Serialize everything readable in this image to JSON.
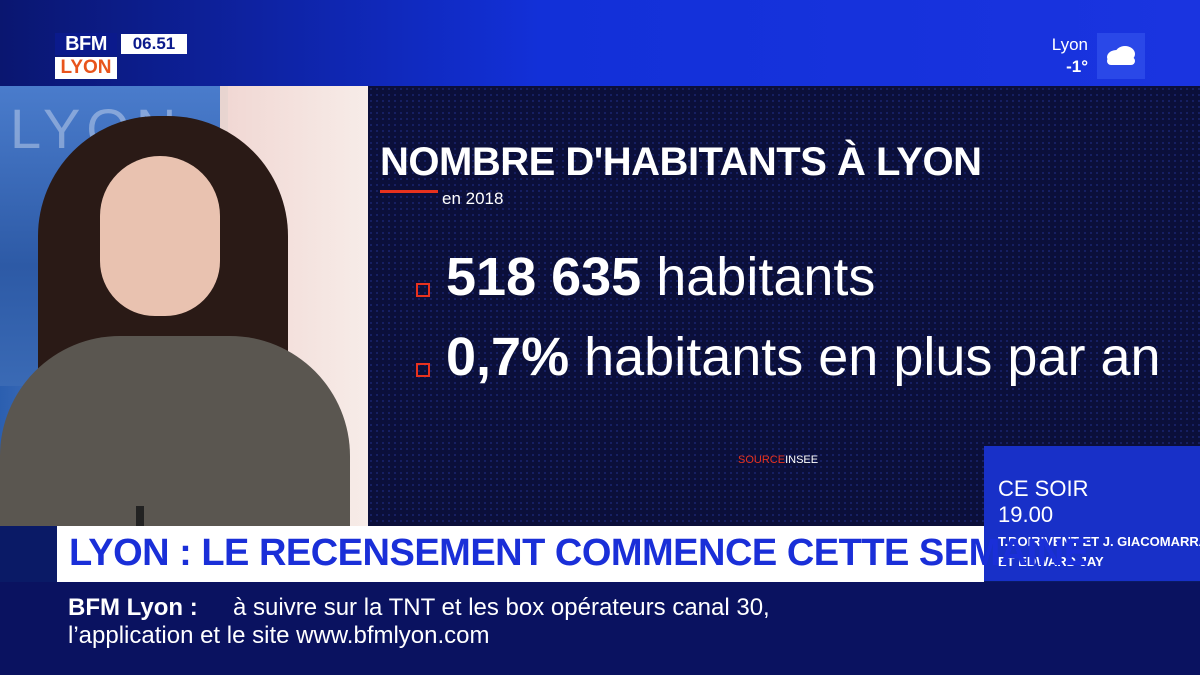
{
  "brand": {
    "bfm": "BFM",
    "city": "LYON"
  },
  "clock": "06.51",
  "weather": {
    "city": "Lyon",
    "temp": "-1°",
    "icon": "cloud-icon"
  },
  "studio": {
    "screen_text": "LYON"
  },
  "infographic": {
    "title": "NOMBRE D'HABITANTS À LYON",
    "subtitle": "en 2018",
    "stats": [
      {
        "value": "518 635",
        "label": "habitants"
      },
      {
        "value": "0,7%",
        "label": "habitants en plus par an"
      }
    ],
    "source_key": "SOURCE",
    "source_value": "INSEE"
  },
  "promo": {
    "head": "CE SOIR",
    "time": "19.00",
    "names_line1": "T.BOIRIVENT ET J. GIACOMARRA",
    "names_line2": "ET EDWARD JAY"
  },
  "headline": "LYON : LE RECENSEMENT COMMENCE CETTE SEMAINE",
  "ticker": {
    "brand": "BFM Lyon :",
    "line1": "à suivre sur la TNT et les box opérateurs canal 30,",
    "line2": "l’application et le site www.bfmlyon.com"
  },
  "colors": {
    "accent_red": "#e8321e",
    "brand_blue": "#1a2fd8"
  }
}
